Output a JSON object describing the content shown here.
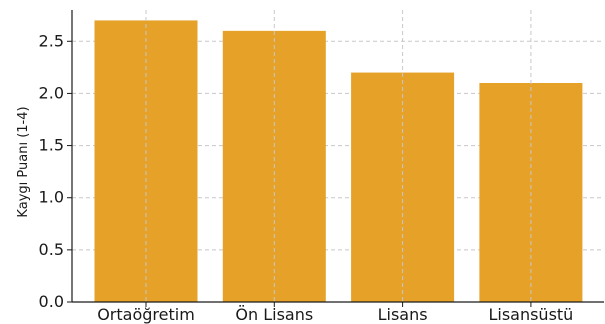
{
  "chart_data": {
    "type": "bar",
    "title": "",
    "xlabel": "",
    "ylabel": "Kaygı Puanı (1-4)",
    "categories": [
      "Ortaöğretim",
      "Ön Lisans",
      "Lisans",
      "Lisansüstü"
    ],
    "values": [
      2.7,
      2.6,
      2.2,
      2.1
    ],
    "ylim": [
      0,
      2.8
    ],
    "yticks": [
      0.0,
      0.5,
      1.0,
      1.5,
      2.0,
      2.5
    ],
    "ytick_labels": [
      "0.0",
      "0.5",
      "1.0",
      "1.5",
      "2.0",
      "2.5"
    ],
    "grid": true,
    "bar_color": "#E5A128"
  }
}
